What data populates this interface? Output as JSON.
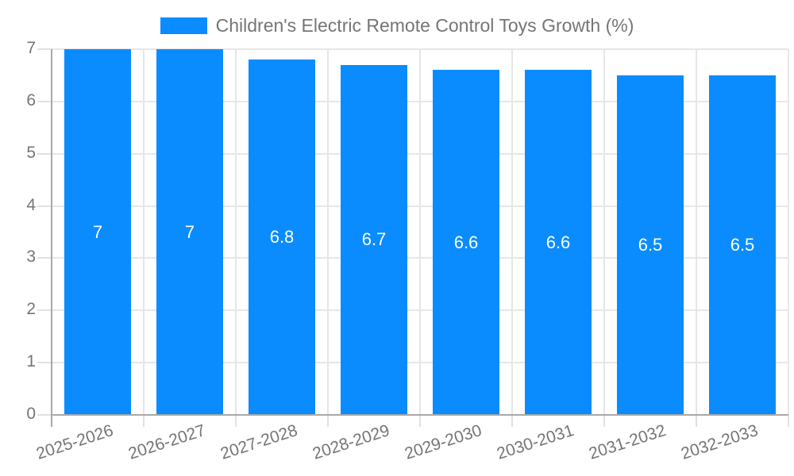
{
  "chart_data": {
    "type": "bar",
    "title": "Children's Electric Remote Control Toys Growth (%)",
    "legend_entries": [
      "Children's Electric Remote Control Toys Growth (%)"
    ],
    "legend_position": "top",
    "categories": [
      "2025-2026",
      "2026-2027",
      "2027-2028",
      "2028-2029",
      "2029-2030",
      "2030-2031",
      "2031-2032",
      "2032-2033"
    ],
    "values": [
      7,
      7,
      6.8,
      6.7,
      6.6,
      6.6,
      6.5,
      6.5
    ],
    "value_labels": [
      "7",
      "7",
      "6.8",
      "6.7",
      "6.6",
      "6.6",
      "6.5",
      "6.5"
    ],
    "xlabel": "",
    "ylabel": "",
    "ylim": [
      0,
      7
    ],
    "ytick_labels": [
      "0",
      "1",
      "2",
      "3",
      "4",
      "5",
      "6",
      "7"
    ],
    "grid": "on"
  },
  "colors": {
    "bar": "#0a8cff",
    "axis_text": "#757575",
    "bar_value_text": "#ffffff",
    "gridline": "#e6e6e6",
    "tick": "#e0e0e0",
    "axis_line": "#a8a8a8",
    "background": "#ffffff"
  }
}
